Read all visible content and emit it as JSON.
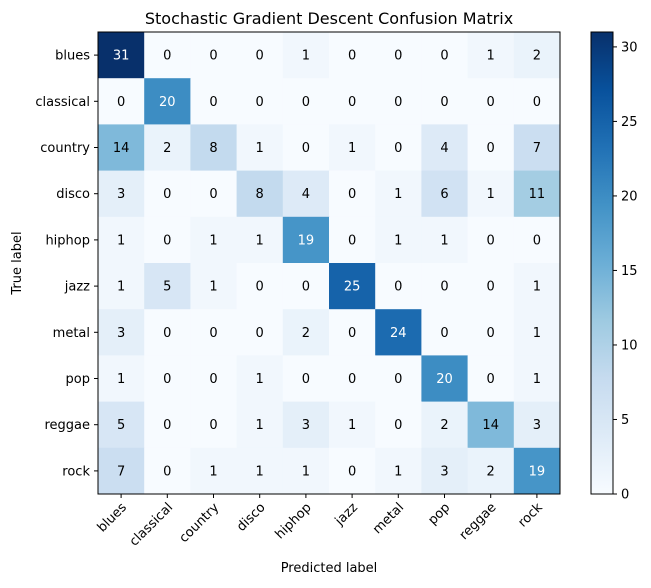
{
  "chart_data": {
    "type": "heatmap",
    "title": "Stochastic Gradient Descent Confusion Matrix",
    "xlabel": "Predicted label",
    "ylabel": "True label",
    "x_categories": [
      "blues",
      "classical",
      "country",
      "disco",
      "hiphop",
      "jazz",
      "metal",
      "pop",
      "reggae",
      "rock"
    ],
    "y_categories": [
      "blues",
      "classical",
      "country",
      "disco",
      "hiphop",
      "jazz",
      "metal",
      "pop",
      "reggae",
      "rock"
    ],
    "values": [
      [
        31,
        0,
        0,
        0,
        1,
        0,
        0,
        0,
        1,
        2
      ],
      [
        0,
        20,
        0,
        0,
        0,
        0,
        0,
        0,
        0,
        0
      ],
      [
        14,
        2,
        8,
        1,
        0,
        1,
        0,
        4,
        0,
        7
      ],
      [
        3,
        0,
        0,
        8,
        4,
        0,
        1,
        6,
        1,
        11
      ],
      [
        1,
        0,
        1,
        1,
        19,
        0,
        1,
        1,
        0,
        0
      ],
      [
        1,
        5,
        1,
        0,
        0,
        25,
        0,
        0,
        0,
        1
      ],
      [
        3,
        0,
        0,
        0,
        2,
        0,
        24,
        0,
        0,
        1
      ],
      [
        1,
        0,
        0,
        1,
        0,
        0,
        0,
        20,
        0,
        1
      ],
      [
        5,
        0,
        0,
        1,
        3,
        1,
        0,
        2,
        14,
        3
      ],
      [
        7,
        0,
        1,
        1,
        1,
        0,
        1,
        3,
        2,
        19
      ]
    ],
    "colormap": "Blues",
    "vmin": 0,
    "vmax": 31,
    "colorbar_ticks": [
      0,
      5,
      10,
      15,
      20,
      25,
      30
    ]
  }
}
